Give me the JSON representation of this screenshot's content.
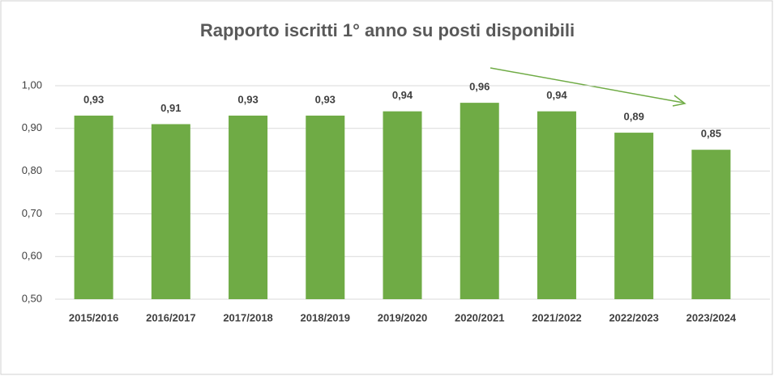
{
  "chart_data": {
    "type": "bar",
    "title": "Rapporto iscritti 1° anno su posti disponibili",
    "categories": [
      "2015/2016",
      "2016/2017",
      "2017/2018",
      "2018/2019",
      "2019/2020",
      "2020/2021",
      "2021/2022",
      "2022/2023",
      "2023/2024"
    ],
    "values": [
      0.93,
      0.91,
      0.93,
      0.93,
      0.94,
      0.96,
      0.94,
      0.89,
      0.85
    ],
    "value_labels": [
      "0,93",
      "0,91",
      "0,93",
      "0,93",
      "0,94",
      "0,96",
      "0,94",
      "0,89",
      "0,85"
    ],
    "color": "#6fab45",
    "ylim": [
      0.5,
      1.0
    ],
    "yticks": [
      {
        "value": 0.5,
        "label": "0,50"
      },
      {
        "value": 0.6,
        "label": "0,60"
      },
      {
        "value": 0.7,
        "label": "0,70"
      },
      {
        "value": 0.8,
        "label": "0,80"
      },
      {
        "value": 0.9,
        "label": "0,90"
      },
      {
        "value": 1.0,
        "label": "1,00"
      }
    ],
    "grid": true
  }
}
